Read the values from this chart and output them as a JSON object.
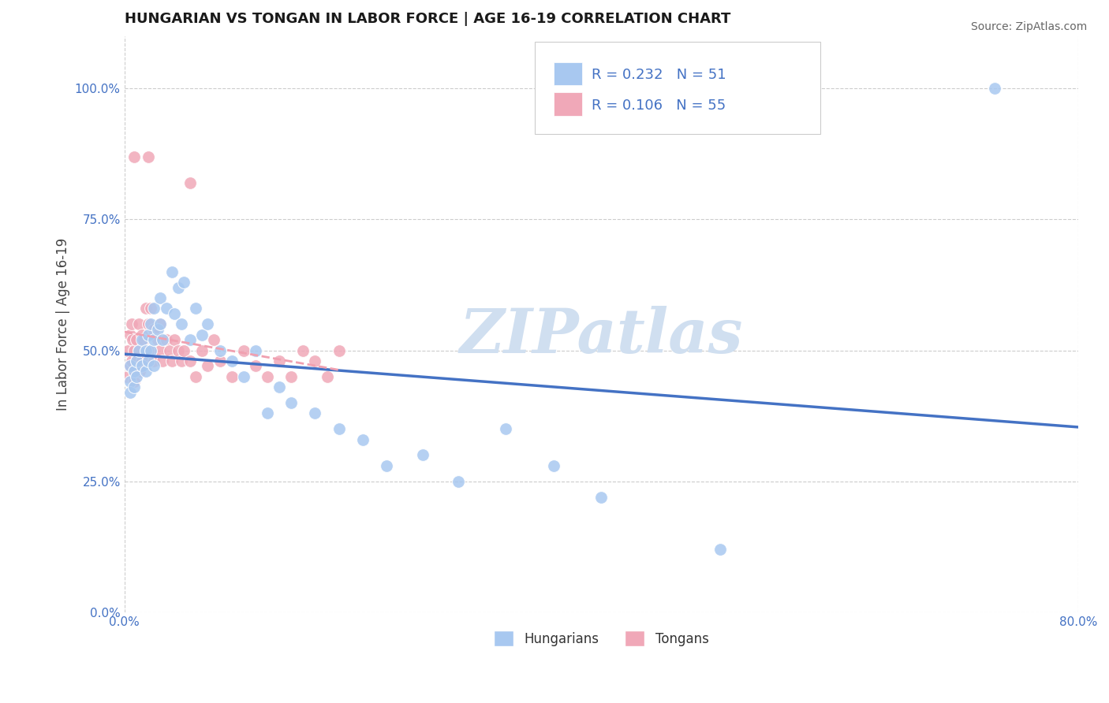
{
  "title": "HUNGARIAN VS TONGAN IN LABOR FORCE | AGE 16-19 CORRELATION CHART",
  "source_text": "Source: ZipAtlas.com",
  "ylabel": "In Labor Force | Age 16-19",
  "xlim": [
    0.0,
    0.8
  ],
  "ylim": [
    0.0,
    1.1
  ],
  "ytick_labels": [
    "0.0%",
    "25.0%",
    "50.0%",
    "75.0%",
    "100.0%"
  ],
  "ytick_values": [
    0.0,
    0.25,
    0.5,
    0.75,
    1.0
  ],
  "background_color": "#ffffff",
  "grid_color": "#cccccc",
  "watermark_text": "ZIPatlas",
  "watermark_color": "#d0dff0",
  "legend_r1": "R = 0.232",
  "legend_n1": "N = 51",
  "legend_r2": "R = 0.106",
  "legend_n2": "N = 55",
  "blue_color": "#a8c8f0",
  "pink_color": "#f0a8b8",
  "label_color": "#4472c4",
  "line_blue_color": "#4472c4",
  "line_pink_color": "#f0a0b0",
  "hungarian_x": [
    0.005,
    0.005,
    0.005,
    0.008,
    0.008,
    0.01,
    0.01,
    0.012,
    0.015,
    0.015,
    0.018,
    0.018,
    0.02,
    0.02,
    0.022,
    0.022,
    0.025,
    0.025,
    0.025,
    0.028,
    0.03,
    0.03,
    0.032,
    0.035,
    0.04,
    0.042,
    0.045,
    0.048,
    0.05,
    0.055,
    0.06,
    0.065,
    0.07,
    0.08,
    0.09,
    0.1,
    0.11,
    0.12,
    0.13,
    0.14,
    0.16,
    0.18,
    0.2,
    0.22,
    0.25,
    0.28,
    0.32,
    0.36,
    0.4,
    0.5,
    0.73
  ],
  "hungarian_y": [
    0.47,
    0.44,
    0.42,
    0.46,
    0.43,
    0.48,
    0.45,
    0.5,
    0.52,
    0.47,
    0.5,
    0.46,
    0.53,
    0.48,
    0.55,
    0.5,
    0.58,
    0.52,
    0.47,
    0.54,
    0.6,
    0.55,
    0.52,
    0.58,
    0.65,
    0.57,
    0.62,
    0.55,
    0.63,
    0.52,
    0.58,
    0.53,
    0.55,
    0.5,
    0.48,
    0.45,
    0.5,
    0.38,
    0.43,
    0.4,
    0.38,
    0.35,
    0.33,
    0.28,
    0.3,
    0.25,
    0.35,
    0.28,
    0.22,
    0.12,
    1.0
  ],
  "tongan_x": [
    0.002,
    0.003,
    0.004,
    0.005,
    0.006,
    0.006,
    0.007,
    0.008,
    0.008,
    0.009,
    0.01,
    0.01,
    0.012,
    0.012,
    0.013,
    0.015,
    0.015,
    0.016,
    0.018,
    0.018,
    0.02,
    0.02,
    0.022,
    0.025,
    0.025,
    0.028,
    0.03,
    0.03,
    0.032,
    0.035,
    0.038,
    0.04,
    0.042,
    0.045,
    0.048,
    0.05,
    0.055,
    0.06,
    0.065,
    0.07,
    0.075,
    0.08,
    0.09,
    0.1,
    0.11,
    0.12,
    0.13,
    0.14,
    0.15,
    0.16,
    0.17,
    0.18,
    0.055,
    0.02,
    0.008
  ],
  "tongan_y": [
    0.45,
    0.5,
    0.47,
    0.53,
    0.55,
    0.48,
    0.52,
    0.5,
    0.44,
    0.46,
    0.52,
    0.48,
    0.55,
    0.5,
    0.46,
    0.53,
    0.48,
    0.52,
    0.58,
    0.5,
    0.55,
    0.5,
    0.58,
    0.54,
    0.48,
    0.52,
    0.55,
    0.5,
    0.48,
    0.52,
    0.5,
    0.48,
    0.52,
    0.5,
    0.48,
    0.5,
    0.48,
    0.45,
    0.5,
    0.47,
    0.52,
    0.48,
    0.45,
    0.5,
    0.47,
    0.45,
    0.48,
    0.45,
    0.5,
    0.48,
    0.45,
    0.5,
    0.82,
    0.87,
    0.87
  ]
}
